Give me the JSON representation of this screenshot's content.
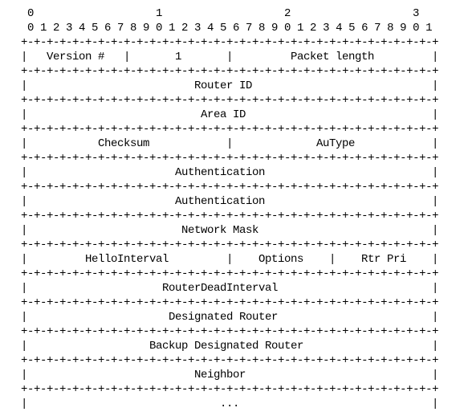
{
  "figure": {
    "ruler": {
      "tens": [
        "0",
        "1",
        "2",
        "3"
      ],
      "units": "0 1 2 3 4 5 6 7 8 9 0 1 2 3 4 5 6 7 8 9 0 1 2 3 4 5 6 7 8 9 0 1"
    },
    "separator": "+-+-+-+-+-+-+-+-+-+-+-+-+-+-+-+-+-+-+-+-+-+-+-+-+-+-+-+-+-+-+-+-+",
    "border": "|",
    "rows": [
      [
        "Version #",
        "1",
        "Packet length"
      ],
      [
        "Router ID"
      ],
      [
        "Area ID"
      ],
      [
        "Checksum",
        "AuType"
      ],
      [
        "Authentication"
      ],
      [
        "Authentication"
      ],
      [
        "Network Mask"
      ],
      [
        "HelloInterval",
        "Options",
        "Rtr Pri"
      ],
      [
        "RouterDeadInterval"
      ],
      [
        "Designated Router"
      ],
      [
        "Backup Designated Router"
      ],
      [
        "Neighbor"
      ],
      [
        "..."
      ]
    ]
  }
}
